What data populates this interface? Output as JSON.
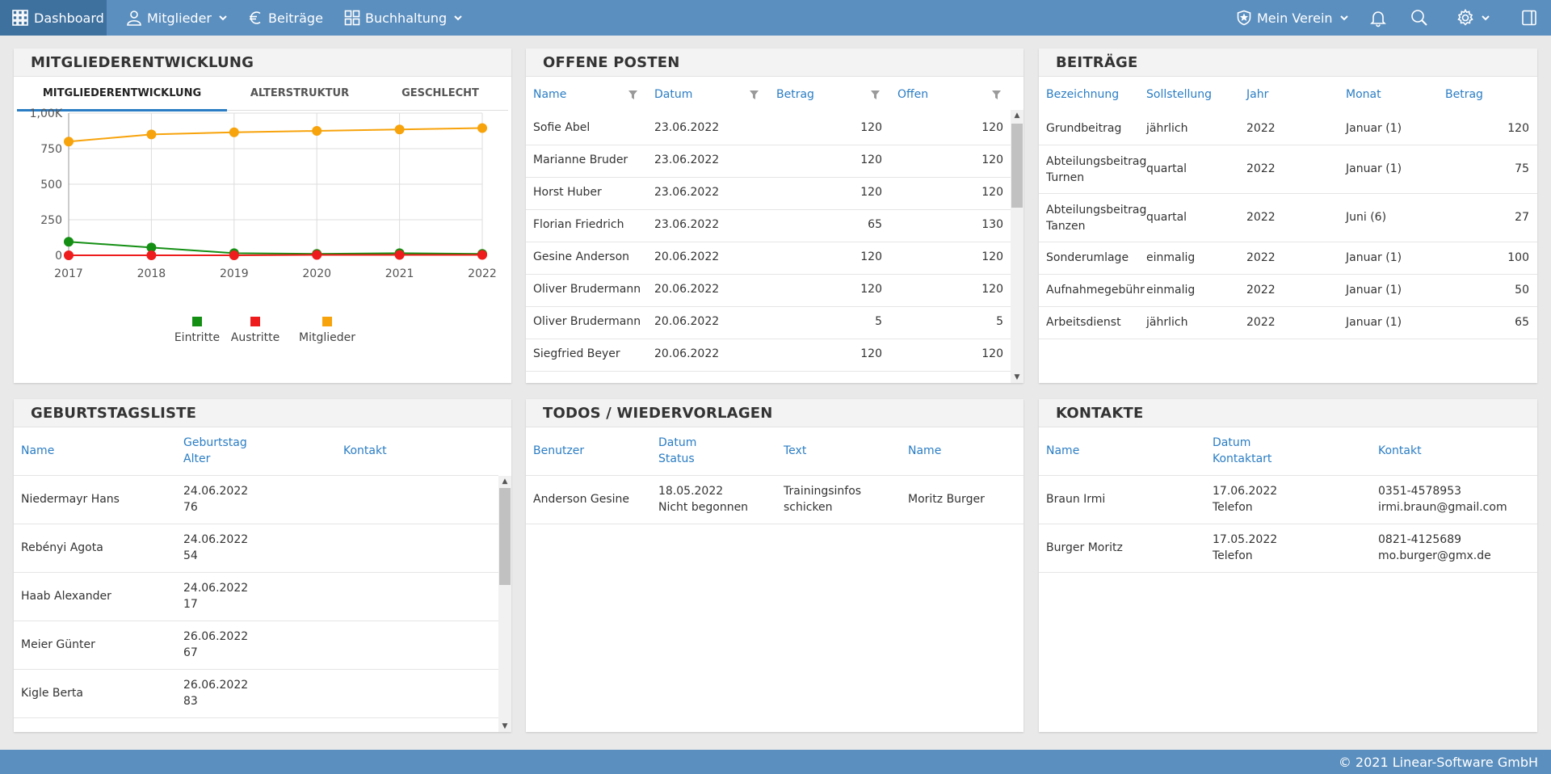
{
  "nav": {
    "dashboard": "Dashboard",
    "mitglieder": "Mitglieder",
    "beitraege": "Beiträge",
    "buchhaltung": "Buchhaltung",
    "verein": "Mein Verein"
  },
  "footer": "© 2021 Linear-Software GmbH",
  "colors": {
    "accent": "#5b8fbf",
    "link": "#2a7dc4",
    "eintritte": "#148f14",
    "austritte": "#ee1c1c",
    "mitglieder": "#f7a30b"
  },
  "mitgliederentwicklung": {
    "title": "MITGLIEDERENTWICKLUNG",
    "tabs": [
      "MITGLIEDERENTWICKLUNG",
      "ALTERSTRUKTUR",
      "GESCHLECHT"
    ],
    "active_tab": 0
  },
  "chart_data": {
    "type": "line",
    "x": [
      2017,
      2018,
      2019,
      2020,
      2021,
      2022
    ],
    "x_ticks": [
      "2017",
      "2018",
      "2019",
      "2020",
      "2021",
      "2022"
    ],
    "y_ticks": [
      "0",
      "250",
      "500",
      "750",
      "1,00K"
    ],
    "ylim": [
      0,
      1000
    ],
    "grid": true,
    "legend_position": "bottom",
    "series": [
      {
        "name": "Eintritte",
        "color": "#148f14",
        "values": [
          95,
          55,
          15,
          10,
          15,
          10
        ]
      },
      {
        "name": "Austritte",
        "color": "#ee1c1c",
        "values": [
          0,
          0,
          0,
          3,
          3,
          3
        ]
      },
      {
        "name": "Mitglieder",
        "color": "#f7a30b",
        "values": [
          800,
          850,
          865,
          875,
          885,
          895
        ]
      }
    ]
  },
  "offene_posten": {
    "title": "OFFENE POSTEN",
    "headers": [
      "Name",
      "Datum",
      "Betrag",
      "Offen"
    ],
    "rows": [
      [
        "Sofie Abel",
        "23.06.2022",
        "120",
        "120"
      ],
      [
        "Marianne Bruder",
        "23.06.2022",
        "120",
        "120"
      ],
      [
        "Horst Huber",
        "23.06.2022",
        "120",
        "120"
      ],
      [
        "Florian Friedrich",
        "23.06.2022",
        "65",
        "130"
      ],
      [
        "Gesine Anderson",
        "20.06.2022",
        "120",
        "120"
      ],
      [
        "Oliver Brudermann",
        "20.06.2022",
        "120",
        "120"
      ],
      [
        "Oliver Brudermann",
        "20.06.2022",
        "5",
        "5"
      ],
      [
        "Siegfried Beyer",
        "20.06.2022",
        "120",
        "120"
      ]
    ]
  },
  "beitraege": {
    "title": "BEITRÄGE",
    "headers": [
      "Bezeichnung",
      "Sollstellung",
      "Jahr",
      "Monat",
      "Betrag"
    ],
    "rows": [
      {
        "name1": "Grundbeitrag",
        "name2": "",
        "soll": "jährlich",
        "jahr": "2022",
        "monat": "Januar (1)",
        "betrag": "120"
      },
      {
        "name1": "Abteilungsbeitrag",
        "name2": "Turnen",
        "soll": "quartal",
        "jahr": "2022",
        "monat": "Januar (1)",
        "betrag": "75"
      },
      {
        "name1": "Abteilungsbeitrag",
        "name2": "Tanzen",
        "soll": "quartal",
        "jahr": "2022",
        "monat": "Juni (6)",
        "betrag": "27"
      },
      {
        "name1": "Sonderumlage",
        "name2": "",
        "soll": "einmalig",
        "jahr": "2022",
        "monat": "Januar (1)",
        "betrag": "100"
      },
      {
        "name1": "Aufnahmegebühr",
        "name2": "",
        "soll": "einmalig",
        "jahr": "2022",
        "monat": "Januar (1)",
        "betrag": "50"
      },
      {
        "name1": "Arbeitsdienst",
        "name2": "",
        "soll": "jährlich",
        "jahr": "2022",
        "monat": "Januar (1)",
        "betrag": "65"
      }
    ]
  },
  "geburtstagsliste": {
    "title": "GEBURTSTAGSLISTE",
    "headers": [
      "Name",
      "Geburtstag",
      "Alter",
      "Kontakt"
    ],
    "rows": [
      [
        "Niedermayr Hans",
        "24.06.2022",
        "76"
      ],
      [
        "Rebényi Agota",
        "24.06.2022",
        "54"
      ],
      [
        "Haab Alexander",
        "24.06.2022",
        "17"
      ],
      [
        "Meier Günter",
        "26.06.2022",
        "67"
      ],
      [
        "Kigle Berta",
        "26.06.2022",
        "83"
      ]
    ]
  },
  "todos": {
    "title": "TODOS / WIEDERVORLAGEN",
    "headers": [
      "Benutzer",
      "Datum",
      "Status",
      "Text",
      "Name"
    ],
    "rows": [
      {
        "benutzer": "Anderson Gesine",
        "datum": "18.05.2022",
        "status": "Nicht begonnen",
        "text1": "Trainingsinfos",
        "text2": "schicken",
        "name": "Moritz Burger"
      }
    ]
  },
  "kontakte": {
    "title": "KONTAKTE",
    "headers": [
      "Name",
      "Datum",
      "Kontaktart",
      "Kontakt"
    ],
    "rows": [
      {
        "name": "Braun Irmi",
        "datum": "17.06.2022",
        "art": "Telefon",
        "tel": "0351-4578953",
        "mail": "irmi.braun@gmail.com"
      },
      {
        "name": "Burger Moritz",
        "datum": "17.05.2022",
        "art": "Telefon",
        "tel": "0821-4125689",
        "mail": "mo.burger@gmx.de"
      }
    ]
  }
}
